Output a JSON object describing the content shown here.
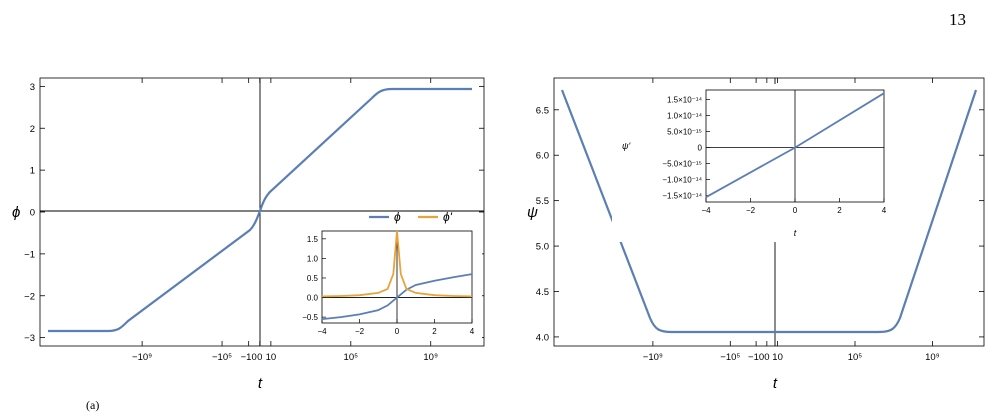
{
  "page": {
    "number": "13",
    "caption_fragment": "(a)"
  },
  "colors": {
    "phi": "#5b7fb5",
    "dphi": "#e8a43a",
    "psi": "#5b7fb5",
    "dpsi": "#5b7fb5",
    "frame": "#000000"
  },
  "chart_data": [
    {
      "id": "left-main",
      "type": "line",
      "xlabel": "t",
      "ylabel": "ϕ",
      "x_ticks": [
        "−10⁹",
        "−10⁵",
        "−10",
        "0",
        "10",
        "10⁵",
        "10⁹"
      ],
      "y_ticks": [
        "−3",
        "−2",
        "−1",
        "0",
        "1",
        "2",
        "3"
      ],
      "ylim": [
        -3.2,
        3.2
      ],
      "series": [
        {
          "name": "ϕ",
          "x": [
            -1000000000000.0,
            -10000000.0,
            -100000.0,
            -1000.0,
            -10,
            0,
            10,
            1000.0,
            100000.0,
            10000000.0,
            1000000000000.0
          ],
          "y": [
            -2.98,
            -2.85,
            -2.0,
            -1.2,
            -0.45,
            0,
            0.45,
            1.2,
            2.0,
            2.85,
            3.02
          ]
        }
      ]
    },
    {
      "id": "left-inset",
      "type": "line",
      "x_ticks": [
        "−4",
        "−2",
        "0",
        "2",
        "4"
      ],
      "y_ticks": [
        "−0.5",
        "0.0",
        "0.5",
        "1.0",
        "1.5"
      ],
      "xlim": [
        -4,
        4
      ],
      "ylim": [
        -0.65,
        1.7
      ],
      "legend": [
        "ϕ",
        "ϕ'"
      ],
      "legend_position": "top",
      "series": [
        {
          "name": "ϕ",
          "x": [
            -4,
            -3,
            -2,
            -1,
            -0.5,
            0,
            0.5,
            1,
            2,
            3,
            4
          ],
          "y": [
            -0.55,
            -0.5,
            -0.43,
            -0.32,
            -0.2,
            0,
            0.2,
            0.32,
            0.43,
            0.52,
            0.6
          ]
        },
        {
          "name": "ϕ'",
          "x": [
            -4,
            -3,
            -2,
            -1,
            -0.5,
            -0.2,
            0,
            0.2,
            0.5,
            1,
            2,
            3,
            4
          ],
          "y": [
            0.03,
            0.04,
            0.06,
            0.12,
            0.22,
            0.6,
            1.7,
            0.6,
            0.22,
            0.12,
            0.06,
            0.04,
            0.03
          ]
        }
      ]
    },
    {
      "id": "right-main",
      "type": "line",
      "xlabel": "t",
      "ylabel": "ψ",
      "x_ticks": [
        "−10⁹",
        "−10⁵",
        "−10",
        "0",
        "10",
        "10⁵",
        "10⁹"
      ],
      "y_ticks": [
        "4.0",
        "4.5",
        "5.0",
        "5.5",
        "6.0",
        "6.5"
      ],
      "ylim": [
        3.9,
        6.85
      ],
      "series": [
        {
          "name": "ψ",
          "x": [
            -1000000000000.0,
            -1000000.0,
            -100000.0,
            0,
            100000.0,
            1000000.0,
            1000000000000.0
          ],
          "y": [
            6.75,
            4.1,
            3.98,
            3.98,
            3.98,
            4.1,
            6.75
          ]
        }
      ]
    },
    {
      "id": "right-inset",
      "type": "line",
      "xlabel": "t",
      "ylabel": "ψ'",
      "x_ticks": [
        "−4",
        "−2",
        "0",
        "2",
        "4"
      ],
      "y_ticks": [
        "−1.5×10⁻¹⁴",
        "−1.0×10⁻¹⁴",
        "−5.0×10⁻¹⁵",
        "0",
        "5.0×10⁻¹⁵",
        "1.0×10⁻¹⁴",
        "1.5×10⁻¹⁴"
      ],
      "xlim": [
        -4,
        4
      ],
      "ylim": [
        -1.7e-14,
        1.8e-14
      ],
      "series": [
        {
          "name": "ψ'",
          "x": [
            -4,
            0,
            4
          ],
          "y": [
            -1.55e-14,
            0,
            1.7e-14
          ]
        }
      ]
    }
  ]
}
